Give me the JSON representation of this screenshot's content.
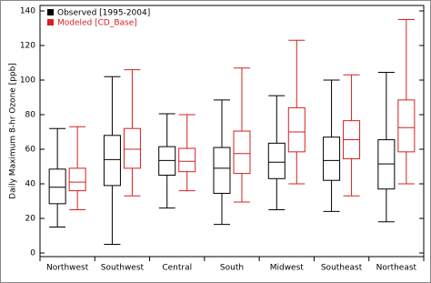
{
  "chart_data": {
    "type": "box",
    "y_label": "Daily Maximum 8-hr Ozone [ppb]",
    "categories": [
      "Northwest",
      "Southwest",
      "Central",
      "South",
      "Midwest",
      "Southeast",
      "Northeast"
    ],
    "series": [
      {
        "name": "Observed [1995-2004]",
        "color": "#000000",
        "min": [
          15,
          5,
          26,
          16.5,
          25,
          24,
          18
        ],
        "q1": [
          28.5,
          39,
          45,
          34.5,
          43,
          42,
          37
        ],
        "median": [
          38,
          54,
          53.5,
          49,
          52.5,
          53.5,
          51.5
        ],
        "q3": [
          48.5,
          68,
          61.5,
          61,
          63.5,
          67,
          65.5
        ],
        "max": [
          72,
          102,
          80.5,
          88.5,
          91,
          100,
          104.5
        ]
      },
      {
        "name": "Modeled [CD_Base]",
        "color": "#d42020",
        "min": [
          25,
          33,
          36,
          29.5,
          40,
          33,
          40
        ],
        "q1": [
          36,
          49,
          47,
          46,
          58.5,
          54.5,
          58.5
        ],
        "median": [
          41,
          60,
          53,
          57.5,
          70,
          65.5,
          72.5
        ],
        "q3": [
          49,
          72,
          60.5,
          70.5,
          84,
          76.5,
          88.5
        ],
        "max": [
          73,
          106,
          80,
          107,
          123,
          103,
          135
        ]
      }
    ],
    "ylim": [
      0,
      140
    ],
    "yticks": [
      0,
      20,
      40,
      60,
      80,
      100,
      120,
      140
    ],
    "legend": "upper-left"
  }
}
